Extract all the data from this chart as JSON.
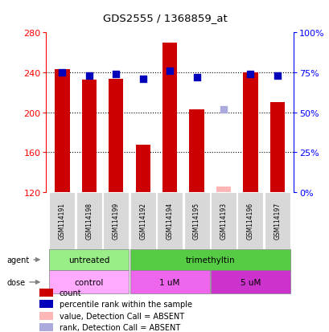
{
  "title": "GDS2555 / 1368859_at",
  "samples": [
    "GSM114191",
    "GSM114198",
    "GSM114199",
    "GSM114192",
    "GSM114194",
    "GSM114195",
    "GSM114193",
    "GSM114196",
    "GSM114197"
  ],
  "bar_values": [
    243,
    233,
    234,
    168,
    270,
    203,
    null,
    240,
    210
  ],
  "bar_absent_values": [
    null,
    null,
    null,
    null,
    null,
    null,
    126,
    null,
    null
  ],
  "rank_values": [
    75,
    73,
    74,
    71,
    76,
    72,
    null,
    74,
    73
  ],
  "rank_absent_values": [
    null,
    null,
    null,
    null,
    null,
    null,
    52,
    null,
    null
  ],
  "ymin": 120,
  "ymax": 280,
  "yticks": [
    120,
    160,
    200,
    240,
    280
  ],
  "right_yticks": [
    0,
    25,
    50,
    75,
    100
  ],
  "agent_groups": [
    {
      "label": "untreated",
      "start": 0,
      "end": 3,
      "color": "#99EE88"
    },
    {
      "label": "trimethyltin",
      "start": 3,
      "end": 9,
      "color": "#55CC44"
    }
  ],
  "dose_groups": [
    {
      "label": "control",
      "start": 0,
      "end": 3,
      "color": "#FFAAFF"
    },
    {
      "label": "1 uM",
      "start": 3,
      "end": 6,
      "color": "#EE66EE"
    },
    {
      "label": "5 uM",
      "start": 6,
      "end": 9,
      "color": "#CC33CC"
    }
  ],
  "bar_color": "#CC0000",
  "bar_absent_color": "#FFB6B6",
  "rank_color": "#0000BB",
  "rank_absent_color": "#AAAADD",
  "bar_width": 0.55,
  "legend_items": [
    {
      "label": "count",
      "color": "#CC0000"
    },
    {
      "label": "percentile rank within the sample",
      "color": "#0000BB"
    },
    {
      "label": "value, Detection Call = ABSENT",
      "color": "#FFB6B6"
    },
    {
      "label": "rank, Detection Call = ABSENT",
      "color": "#AAAADD"
    }
  ],
  "agent_label": "agent",
  "dose_label": "dose",
  "sample_bg_color": "#D8D8D8",
  "plot_bg_color": "#FFFFFF"
}
